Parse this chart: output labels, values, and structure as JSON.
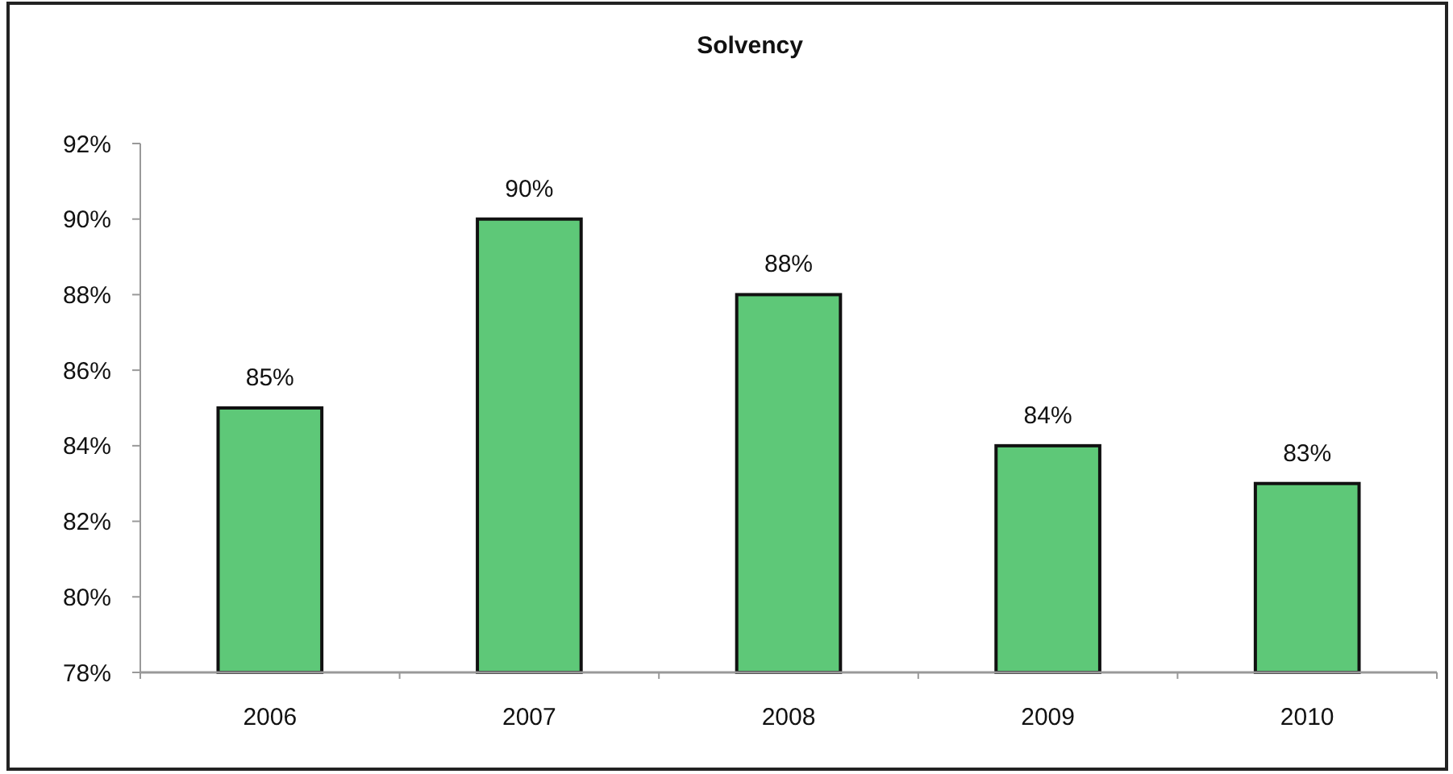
{
  "chart_data": {
    "type": "bar",
    "title": "Solvency",
    "categories": [
      "2006",
      "2007",
      "2008",
      "2009",
      "2010"
    ],
    "values": [
      85,
      90,
      88,
      84,
      83
    ],
    "color": "#5ec878",
    "value_labels": [
      "85%",
      "90%",
      "88%",
      "84%",
      "83%"
    ],
    "ylim": [
      78,
      92
    ],
    "yticks": [
      {
        "value": 78,
        "label": "78%"
      },
      {
        "value": 80,
        "label": "80%"
      },
      {
        "value": 82,
        "label": "82%"
      },
      {
        "value": 84,
        "label": "84%"
      },
      {
        "value": 86,
        "label": "86%"
      },
      {
        "value": 88,
        "label": "88%"
      },
      {
        "value": 90,
        "label": "90%"
      },
      {
        "value": 92,
        "label": "92%"
      }
    ],
    "grid": false
  }
}
